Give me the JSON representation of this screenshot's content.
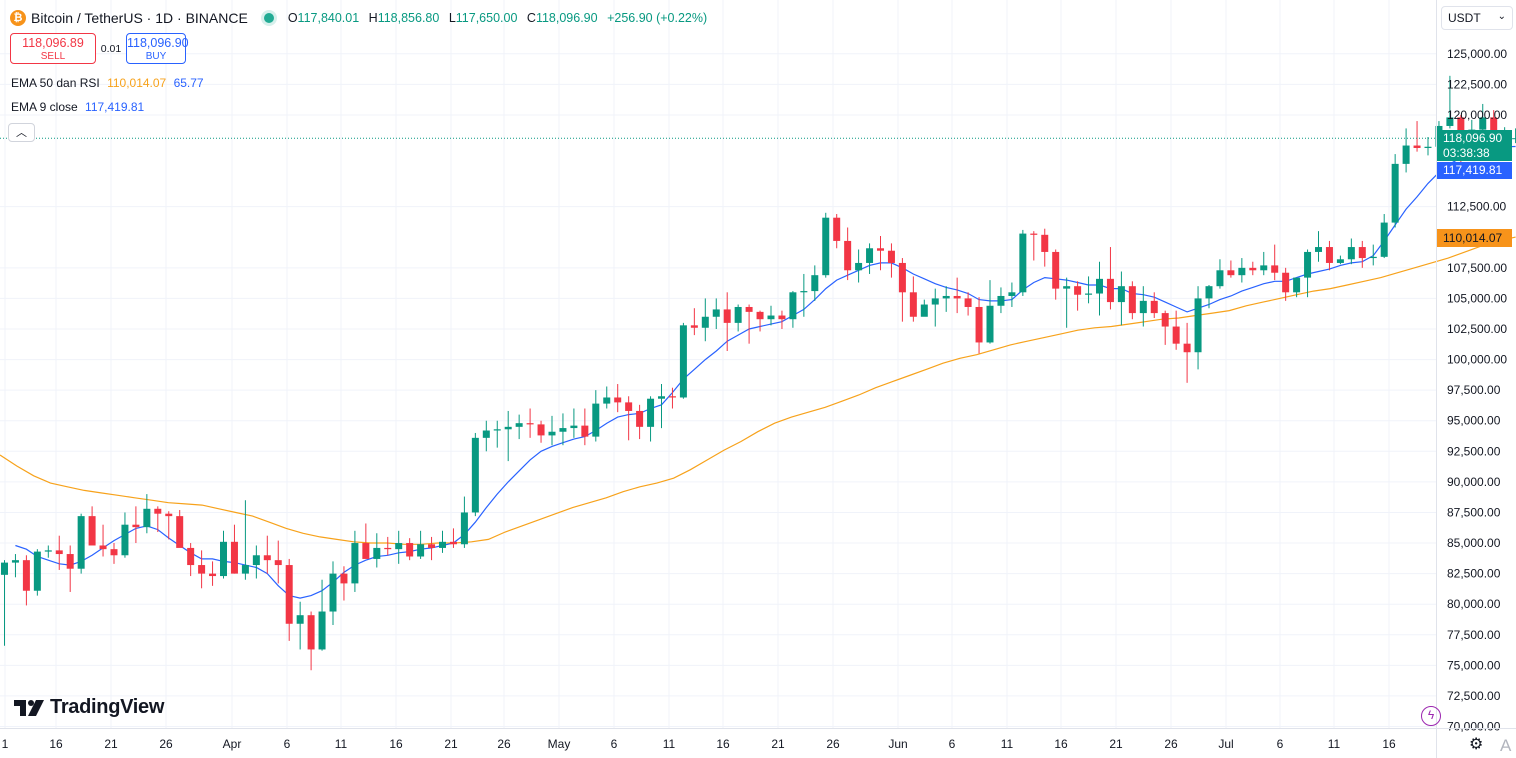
{
  "header": {
    "title": "Bitcoin / TetherUS · 1D · BINANCE",
    "o_label": "O",
    "o_value": "117,840.01",
    "h_label": "H",
    "h_value": "118,856.80",
    "l_label": "L",
    "l_value": "117,650.00",
    "c_label": "C",
    "c_value": "118,096.90",
    "change": "+256.90 (+0.22%)"
  },
  "trade": {
    "sell_price": "118,096.89",
    "sell_label": "SELL",
    "spread": "0.01",
    "buy_price": "118,096.90",
    "buy_label": "BUY"
  },
  "indicators": {
    "ema50_label": "EMA 50 dan RSI",
    "ema50_value": "110,014.07",
    "ema50_rsi": "65.77",
    "ema9_label": "EMA 9 close",
    "ema9_value": "117,419.81"
  },
  "quote_selector": "USDT",
  "logo_text": "TradingView",
  "price_tags": {
    "last_price": "118,096.90",
    "countdown": "03:38:38",
    "ema9": "117,419.81",
    "ema50": "110,014.07"
  },
  "colors": {
    "up": "#089981",
    "down": "#f23645",
    "ema9": "#2962ff",
    "ema50": "#f7a21b"
  },
  "chart_data": {
    "type": "candlestick",
    "y_ticks": [
      "125,000.00",
      "122,500.00",
      "120,000.00",
      "112,500.00",
      "107,500.00",
      "105,000.00",
      "102,500.00",
      "100,000.00",
      "97,500.00",
      "95,000.00",
      "92,500.00",
      "90,000.00",
      "87,500.00",
      "85,000.00",
      "82,500.00",
      "80,000.00",
      "77,500.00",
      "75,000.00",
      "72,500.00",
      "70,000.00"
    ],
    "x_ticks": [
      "1",
      "16",
      "21",
      "26",
      "Apr",
      "6",
      "11",
      "16",
      "21",
      "26",
      "May",
      "6",
      "11",
      "16",
      "21",
      "26",
      "Jun",
      "6",
      "11",
      "16",
      "21",
      "26",
      "Jul",
      "6",
      "11",
      "16"
    ],
    "ylim": [
      70000,
      125000
    ],
    "grid": true,
    "series_ohlc": [
      [
        82400,
        83600,
        76600,
        83400
      ],
      [
        83400,
        84100,
        82200,
        83600
      ],
      [
        83600,
        84000,
        79900,
        81100
      ],
      [
        81100,
        84500,
        80700,
        84300
      ],
      [
        84300,
        84800,
        83800,
        84400
      ],
      [
        84400,
        85600,
        82800,
        84100
      ],
      [
        84100,
        84800,
        81000,
        82900
      ],
      [
        82900,
        87400,
        82500,
        87200
      ],
      [
        87200,
        88000,
        84900,
        84800
      ],
      [
        84800,
        86500,
        83900,
        84500
      ],
      [
        84500,
        85000,
        83300,
        84000
      ],
      [
        84000,
        87500,
        83800,
        86500
      ],
      [
        86500,
        88000,
        85000,
        86300
      ],
      [
        86300,
        89000,
        85800,
        87800
      ],
      [
        87800,
        88000,
        85900,
        87400
      ],
      [
        87400,
        87600,
        85300,
        87200
      ],
      [
        87200,
        87700,
        85000,
        84600
      ],
      [
        84600,
        85000,
        82300,
        83200
      ],
      [
        83200,
        84400,
        81300,
        82500
      ],
      [
        82500,
        83500,
        81500,
        82300
      ],
      [
        82300,
        86000,
        82100,
        85100
      ],
      [
        85100,
        86500,
        82500,
        82500
      ],
      [
        82500,
        88500,
        82000,
        83200
      ],
      [
        83200,
        84800,
        82100,
        84000
      ],
      [
        84000,
        85600,
        82500,
        83600
      ],
      [
        83600,
        85200,
        81700,
        83200
      ],
      [
        83200,
        83700,
        77000,
        78400
      ],
      [
        78400,
        80200,
        76300,
        79100
      ],
      [
        79100,
        79400,
        74600,
        76300
      ],
      [
        76300,
        82000,
        76200,
        79400
      ],
      [
        79400,
        83500,
        78300,
        82500
      ],
      [
        82500,
        83100,
        80300,
        81700
      ],
      [
        81700,
        86000,
        81000,
        85000
      ],
      [
        85000,
        86600,
        84300,
        83700
      ],
      [
        83700,
        85800,
        83000,
        84600
      ],
      [
        84600,
        85500,
        84000,
        84500
      ],
      [
        84500,
        86000,
        83300,
        85000
      ],
      [
        85000,
        85400,
        83600,
        83900
      ],
      [
        83900,
        86000,
        83700,
        84900
      ],
      [
        84900,
        85500,
        83600,
        84600
      ],
      [
        84600,
        86000,
        84200,
        85100
      ],
      [
        85100,
        86200,
        84600,
        84900
      ],
      [
        84900,
        88800,
        84600,
        87500
      ],
      [
        87500,
        94000,
        87200,
        93600
      ],
      [
        93600,
        95000,
        92500,
        94200
      ],
      [
        94200,
        95000,
        92800,
        94300
      ],
      [
        94300,
        95800,
        91700,
        94500
      ],
      [
        94500,
        95500,
        93500,
        94800
      ],
      [
        94800,
        96000,
        93600,
        94700
      ],
      [
        94700,
        95000,
        93200,
        93800
      ],
      [
        93800,
        95400,
        93000,
        94100
      ],
      [
        94100,
        95600,
        93000,
        94400
      ],
      [
        94400,
        96000,
        93600,
        94600
      ],
      [
        94600,
        96000,
        93000,
        93700
      ],
      [
        93700,
        97500,
        93300,
        96400
      ],
      [
        96400,
        97800,
        96000,
        96900
      ],
      [
        96900,
        98000,
        95700,
        96500
      ],
      [
        96500,
        97000,
        93400,
        95800
      ],
      [
        95800,
        96300,
        93500,
        94500
      ],
      [
        94500,
        97000,
        93300,
        96800
      ],
      [
        96800,
        98000,
        94400,
        97000
      ],
      [
        97000,
        97700,
        96000,
        96900
      ],
      [
        96900,
        103000,
        96800,
        102800
      ],
      [
        102800,
        104200,
        102000,
        102600
      ],
      [
        102600,
        105000,
        101500,
        103500
      ],
      [
        103500,
        105000,
        102500,
        104100
      ],
      [
        104100,
        105500,
        100700,
        103000
      ],
      [
        103000,
        104500,
        102300,
        104300
      ],
      [
        104300,
        104500,
        101300,
        103900
      ],
      [
        103900,
        104000,
        102300,
        103300
      ],
      [
        103300,
        104400,
        102800,
        103600
      ],
      [
        103600,
        104000,
        102500,
        103300
      ],
      [
        103300,
        105600,
        102600,
        105500
      ],
      [
        105500,
        107000,
        103500,
        105600
      ],
      [
        105600,
        107700,
        104800,
        106900
      ],
      [
        106900,
        112000,
        106700,
        111600
      ],
      [
        111600,
        111900,
        109100,
        109700
      ],
      [
        109700,
        110800,
        106500,
        107300
      ],
      [
        107300,
        109000,
        106300,
        107900
      ],
      [
        107900,
        109500,
        107000,
        109100
      ],
      [
        109100,
        110100,
        107300,
        108900
      ],
      [
        108900,
        109500,
        106700,
        107900
      ],
      [
        107900,
        108300,
        103100,
        105500
      ],
      [
        105500,
        106800,
        103100,
        103500
      ],
      [
        103500,
        104900,
        103600,
        104500
      ],
      [
        104500,
        105800,
        102700,
        105000
      ],
      [
        105000,
        106000,
        103900,
        105200
      ],
      [
        105200,
        106700,
        103800,
        105000
      ],
      [
        105000,
        105500,
        103600,
        104300
      ],
      [
        104300,
        105100,
        100500,
        101400
      ],
      [
        101400,
        106500,
        101300,
        104400
      ],
      [
        104400,
        105900,
        103800,
        105200
      ],
      [
        105200,
        106300,
        104300,
        105500
      ],
      [
        105500,
        110600,
        105200,
        110300
      ],
      [
        110300,
        110500,
        108100,
        110200
      ],
      [
        110200,
        110700,
        107600,
        108800
      ],
      [
        108800,
        109000,
        104900,
        105800
      ],
      [
        105800,
        106700,
        102600,
        106000
      ],
      [
        106000,
        106400,
        104000,
        105300
      ],
      [
        105300,
        106800,
        104600,
        105400
      ],
      [
        105400,
        108000,
        103600,
        106600
      ],
      [
        106600,
        109200,
        104100,
        104700
      ],
      [
        104700,
        107200,
        102800,
        106000
      ],
      [
        106000,
        106400,
        103300,
        103800
      ],
      [
        103800,
        106000,
        102700,
        104800
      ],
      [
        104800,
        105500,
        103400,
        103800
      ],
      [
        103800,
        104000,
        101200,
        102700
      ],
      [
        102700,
        104000,
        100800,
        101300
      ],
      [
        101300,
        103000,
        98100,
        100600
      ],
      [
        100600,
        106000,
        99200,
        105000
      ],
      [
        105000,
        106100,
        104200,
        106000
      ],
      [
        106000,
        108200,
        105800,
        107300
      ],
      [
        107300,
        108100,
        106700,
        106900
      ],
      [
        106900,
        108300,
        106300,
        107500
      ],
      [
        107500,
        108000,
        106900,
        107300
      ],
      [
        107300,
        108800,
        106900,
        107700
      ],
      [
        107700,
        109400,
        106500,
        107100
      ],
      [
        107100,
        107500,
        104800,
        105500
      ],
      [
        105500,
        106600,
        105100,
        106700
      ],
      [
        106700,
        109000,
        105100,
        108800
      ],
      [
        108800,
        110500,
        108000,
        109200
      ],
      [
        109200,
        109700,
        107300,
        107900
      ],
      [
        107900,
        108500,
        107800,
        108200
      ],
      [
        108200,
        109900,
        107800,
        109200
      ],
      [
        109200,
        109700,
        107500,
        108300
      ],
      [
        108300,
        109400,
        107700,
        108400
      ],
      [
        108400,
        111900,
        108300,
        111200
      ],
      [
        111200,
        116800,
        110800,
        116000
      ],
      [
        116000,
        118900,
        115300,
        117500
      ],
      [
        117500,
        119500,
        117000,
        117300
      ],
      [
        117300,
        118200,
        116700,
        117400
      ],
      [
        117400,
        119500,
        117100,
        119100
      ],
      [
        119100,
        123200,
        118900,
        119800
      ],
      [
        119800,
        120000,
        115700,
        117700
      ],
      [
        117700,
        119600,
        116600,
        118800
      ],
      [
        118800,
        120900,
        117600,
        119800
      ],
      [
        119800,
        120400,
        117300,
        117900
      ],
      [
        117900,
        119000,
        117600,
        118100
      ],
      [
        118100,
        118900,
        117700,
        118100
      ]
    ],
    "ema9": [
      84800,
      84500,
      83900,
      83600,
      83300,
      83200,
      83500,
      84000,
      84600,
      85200,
      85700,
      86200,
      86400,
      86100,
      85400,
      84800,
      84200,
      83700,
      83700,
      83500,
      83400,
      83200,
      83000,
      82500,
      81500,
      80700,
      80500,
      80700,
      81100,
      81800,
      82600,
      83200,
      83600,
      83900,
      84000,
      84200,
      84300,
      84500,
      84600,
      84800,
      85000,
      85700,
      86700,
      87900,
      89000,
      90000,
      90900,
      91800,
      92500,
      92900,
      93200,
      93500,
      93700,
      94200,
      94800,
      95300,
      95500,
      95600,
      96000,
      96300,
      97300,
      98400,
      99200,
      100000,
      100700,
      101500,
      102000,
      102500,
      102700,
      102900,
      103100,
      103600,
      104100,
      104900,
      105800,
      106500,
      106900,
      107300,
      107700,
      107900,
      107900,
      107500,
      107000,
      106600,
      106200,
      105900,
      105700,
      105400,
      104900,
      104800,
      104800,
      104900,
      105700,
      106300,
      106700,
      106600,
      106500,
      106300,
      106100,
      106100,
      105800,
      105800,
      105400,
      105300,
      105100,
      104700,
      104300,
      103900,
      104200,
      104500,
      104900,
      105200,
      105600,
      105900,
      106200,
      106400,
      106400,
      106700,
      107000,
      107200,
      107400,
      107700,
      107900,
      108000,
      108500,
      109700,
      111000,
      112300,
      113300,
      114400,
      115300,
      116000,
      116500,
      117000,
      117300,
      117300,
      117400,
      117419.81
    ],
    "ema50": [
      92200,
      91300,
      90500,
      89900,
      89600,
      89300,
      89100,
      88900,
      88700,
      88500,
      88300,
      88200,
      88100,
      87800,
      87500,
      87200,
      86700,
      86200,
      85800,
      85500,
      85300,
      85100,
      85000,
      85000,
      84900,
      84900,
      85000,
      85000,
      85100,
      85300,
      85900,
      86400,
      86900,
      87400,
      87900,
      88300,
      88700,
      89200,
      89600,
      89900,
      90300,
      91000,
      91800,
      92600,
      93300,
      94100,
      94800,
      95300,
      95700,
      96100,
      96600,
      97100,
      97700,
      98200,
      98700,
      99200,
      99700,
      100100,
      100400,
      100800,
      101200,
      101500,
      101800,
      102100,
      102400,
      102600,
      102700,
      102900,
      103100,
      103300,
      103400,
      103600,
      103800,
      104000,
      104400,
      104700,
      105000,
      105300,
      105600,
      105800,
      106100,
      106400,
      106700,
      107100,
      107500,
      107900,
      108300,
      108800,
      109300,
      109700,
      110014.07
    ]
  }
}
